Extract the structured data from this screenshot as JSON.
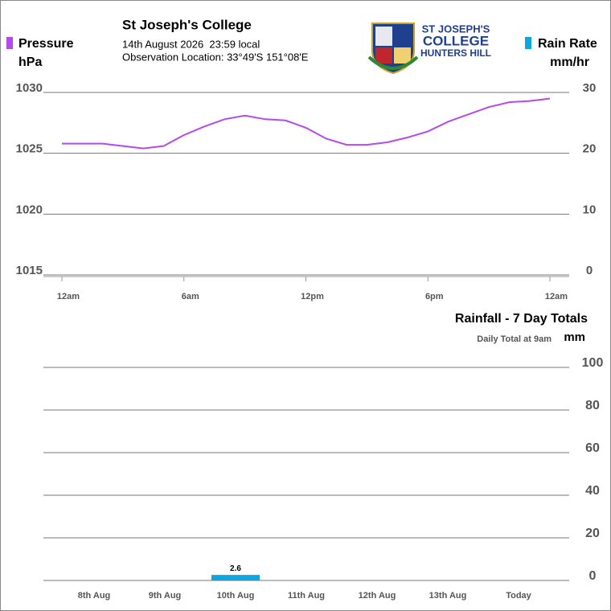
{
  "header": {
    "title": "St Joseph's College",
    "date": "14th August 2026  23:59 local",
    "location": "Observation Location: 33°49'S 151°08'E",
    "logo": {
      "line1": "ST JOSEPH'S",
      "line2": "COLLEGE",
      "line3": "HUNTERS HILL"
    }
  },
  "chart_data": [
    {
      "type": "line",
      "y_label": "hPa",
      "y2_label": "mm/hr",
      "x": [
        0,
        1,
        2,
        3,
        4,
        5,
        6,
        7,
        8,
        9,
        10,
        11,
        12,
        13,
        14,
        15,
        16,
        17,
        18,
        19,
        20,
        21,
        22,
        23,
        24
      ],
      "series": [
        {
          "name": "Pressure",
          "color": "#b44ae8",
          "values": [
            1025.8,
            1025.8,
            1025.8,
            1025.6,
            1025.4,
            1025.6,
            1026.5,
            1027.2,
            1027.8,
            1028.1,
            1027.8,
            1027.7,
            1027.1,
            1026.2,
            1025.7,
            1025.7,
            1025.9,
            1026.3,
            1026.8,
            1027.6,
            1028.2,
            1028.8,
            1029.2,
            1029.3,
            1029.5
          ]
        },
        {
          "name": "Rain Rate",
          "color": "#0ea5e0",
          "axis": "y2",
          "values": [
            0,
            0,
            0,
            0,
            0,
            0,
            0,
            0,
            0,
            0,
            0,
            0,
            0,
            0,
            0,
            0,
            0,
            0,
            0,
            0,
            0,
            0,
            0,
            0,
            0
          ]
        }
      ],
      "xlim": [
        0,
        24
      ],
      "xticks": [
        {
          "value": 0,
          "label": "12am"
        },
        {
          "value": 6,
          "label": "6am"
        },
        {
          "value": 12,
          "label": "12pm"
        },
        {
          "value": 18,
          "label": "6pm"
        },
        {
          "value": 24,
          "label": "12am"
        }
      ],
      "ylim": [
        1015,
        1030
      ],
      "yticks": [
        1015,
        1020,
        1025,
        1030
      ],
      "y2lim": [
        0,
        30
      ],
      "y2ticks": [
        0,
        10,
        20,
        30
      ],
      "grid": true
    },
    {
      "type": "bar",
      "title": "Rainfall - 7 Day Totals",
      "subtitle": "Daily Total at 9am",
      "y_label": "mm",
      "categories": [
        "8th Aug",
        "9th Aug",
        "10th Aug",
        "11th Aug",
        "12th Aug",
        "13th Aug",
        "Today"
      ],
      "values": [
        0,
        0,
        2.6,
        0,
        0,
        0,
        0
      ],
      "color": "#0ea5e0",
      "ylim": [
        0,
        100
      ],
      "yticks": [
        0,
        20,
        40,
        60,
        80,
        100
      ],
      "grid": true
    }
  ]
}
